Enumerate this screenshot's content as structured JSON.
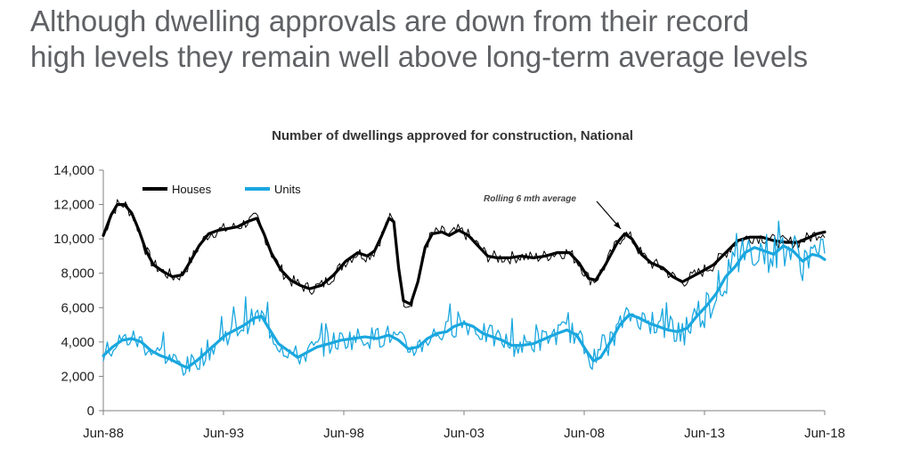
{
  "slide": {
    "title_line1": "Although dwelling approvals are down from their record",
    "title_line2": "high levels they remain well above long-term average levels"
  },
  "chart_data": {
    "type": "line",
    "title": "Number of dwellings approved for construction, National",
    "ylim": [
      0,
      14000
    ],
    "y_ticks": [
      "0",
      "2,000",
      "4,000",
      "6,000",
      "8,000",
      "10,000",
      "12,000",
      "14,000"
    ],
    "x_ticks": [
      "Jun-88",
      "Jun-93",
      "Jun-98",
      "Jun-03",
      "Jun-08",
      "Jun-13",
      "Jun-18"
    ],
    "x_start_year": 1988.42,
    "x_end_year": 2018.42,
    "annotation": "Rolling 6 mth average",
    "colors": {
      "houses": "#000000",
      "units": "#1aa7df"
    },
    "series": [
      {
        "name": "Houses",
        "points": [
          [
            1988.42,
            10200
          ],
          [
            1988.75,
            11400
          ],
          [
            1989.0,
            12000
          ],
          [
            1989.3,
            12000
          ],
          [
            1989.6,
            11500
          ],
          [
            1989.9,
            10500
          ],
          [
            1990.2,
            9300
          ],
          [
            1990.5,
            8500
          ],
          [
            1990.9,
            8100
          ],
          [
            1991.3,
            7800
          ],
          [
            1991.7,
            7900
          ],
          [
            1992.0,
            8600
          ],
          [
            1992.4,
            9600
          ],
          [
            1992.8,
            10300
          ],
          [
            1993.2,
            10500
          ],
          [
            1993.6,
            10600
          ],
          [
            1994.0,
            10700
          ],
          [
            1994.4,
            11000
          ],
          [
            1994.8,
            11200
          ],
          [
            1995.1,
            10300
          ],
          [
            1995.4,
            9200
          ],
          [
            1995.8,
            8200
          ],
          [
            1996.2,
            7600
          ],
          [
            1996.6,
            7300
          ],
          [
            1997.0,
            7100
          ],
          [
            1997.5,
            7300
          ],
          [
            1998.0,
            7900
          ],
          [
            1998.5,
            8700
          ],
          [
            1999.0,
            9200
          ],
          [
            1999.4,
            9000
          ],
          [
            1999.7,
            9300
          ],
          [
            2000.0,
            10200
          ],
          [
            2000.3,
            11200
          ],
          [
            2000.5,
            11000
          ],
          [
            2000.7,
            8300
          ],
          [
            2000.9,
            6400
          ],
          [
            2001.2,
            6200
          ],
          [
            2001.5,
            7500
          ],
          [
            2001.8,
            9500
          ],
          [
            2002.1,
            10300
          ],
          [
            2002.5,
            10400
          ],
          [
            2002.8,
            10200
          ],
          [
            2003.2,
            10500
          ],
          [
            2003.6,
            10200
          ],
          [
            2004.0,
            9600
          ],
          [
            2004.4,
            9000
          ],
          [
            2004.8,
            8900
          ],
          [
            2005.3,
            8900
          ],
          [
            2005.8,
            9000
          ],
          [
            2006.3,
            8900
          ],
          [
            2006.8,
            9000
          ],
          [
            2007.3,
            9200
          ],
          [
            2007.8,
            9200
          ],
          [
            2008.2,
            8600
          ],
          [
            2008.6,
            7700
          ],
          [
            2008.9,
            7600
          ],
          [
            2009.3,
            8500
          ],
          [
            2009.8,
            9800
          ],
          [
            2010.1,
            10300
          ],
          [
            2010.4,
            10000
          ],
          [
            2010.8,
            9100
          ],
          [
            2011.2,
            8600
          ],
          [
            2011.7,
            8300
          ],
          [
            2012.1,
            7800
          ],
          [
            2012.5,
            7500
          ],
          [
            2012.9,
            7800
          ],
          [
            2013.3,
            8100
          ],
          [
            2013.8,
            8500
          ],
          [
            2014.3,
            9200
          ],
          [
            2014.8,
            9900
          ],
          [
            2015.3,
            10100
          ],
          [
            2015.8,
            10100
          ],
          [
            2016.3,
            9900
          ],
          [
            2016.8,
            9800
          ],
          [
            2017.3,
            9800
          ],
          [
            2017.8,
            10100
          ],
          [
            2018.1,
            10300
          ],
          [
            2018.42,
            10400
          ]
        ]
      },
      {
        "name": "Units",
        "points": [
          [
            1988.42,
            3200
          ],
          [
            1988.8,
            3700
          ],
          [
            1989.2,
            4100
          ],
          [
            1989.6,
            4200
          ],
          [
            1990.0,
            4000
          ],
          [
            1990.4,
            3500
          ],
          [
            1990.8,
            3200
          ],
          [
            1991.2,
            3000
          ],
          [
            1991.6,
            2700
          ],
          [
            1991.9,
            2500
          ],
          [
            1992.3,
            2900
          ],
          [
            1992.7,
            3400
          ],
          [
            1993.1,
            3900
          ],
          [
            1993.5,
            4400
          ],
          [
            1993.9,
            4700
          ],
          [
            1994.3,
            5000
          ],
          [
            1994.7,
            5400
          ],
          [
            1995.0,
            5500
          ],
          [
            1995.3,
            4800
          ],
          [
            1995.7,
            3900
          ],
          [
            1996.1,
            3500
          ],
          [
            1996.5,
            3100
          ],
          [
            1996.9,
            3400
          ],
          [
            1997.3,
            3700
          ],
          [
            1997.8,
            3900
          ],
          [
            1998.3,
            4100
          ],
          [
            1998.8,
            4200
          ],
          [
            1999.3,
            4300
          ],
          [
            1999.8,
            4200
          ],
          [
            2000.3,
            4400
          ],
          [
            2000.7,
            4100
          ],
          [
            2001.1,
            3600
          ],
          [
            2001.5,
            3700
          ],
          [
            2001.9,
            4200
          ],
          [
            2002.3,
            4500
          ],
          [
            2002.7,
            4600
          ],
          [
            2003.0,
            4900
          ],
          [
            2003.4,
            5100
          ],
          [
            2003.8,
            4900
          ],
          [
            2004.2,
            4500
          ],
          [
            2004.6,
            4300
          ],
          [
            2005.0,
            4100
          ],
          [
            2005.4,
            3800
          ],
          [
            2005.8,
            3800
          ],
          [
            2006.3,
            3900
          ],
          [
            2006.8,
            4200
          ],
          [
            2007.3,
            4500
          ],
          [
            2007.7,
            4700
          ],
          [
            2008.1,
            4400
          ],
          [
            2008.5,
            3500
          ],
          [
            2008.8,
            2900
          ],
          [
            2009.1,
            3100
          ],
          [
            2009.5,
            4000
          ],
          [
            2009.9,
            5000
          ],
          [
            2010.3,
            5600
          ],
          [
            2010.7,
            5400
          ],
          [
            2011.1,
            5100
          ],
          [
            2011.5,
            4900
          ],
          [
            2011.9,
            4700
          ],
          [
            2012.3,
            4600
          ],
          [
            2012.7,
            4800
          ],
          [
            2013.1,
            5500
          ],
          [
            2013.5,
            6100
          ],
          [
            2013.9,
            6800
          ],
          [
            2014.3,
            7800
          ],
          [
            2014.7,
            8400
          ],
          [
            2015.1,
            9200
          ],
          [
            2015.5,
            9500
          ],
          [
            2015.9,
            9300
          ],
          [
            2016.3,
            9100
          ],
          [
            2016.7,
            9600
          ],
          [
            2017.1,
            9300
          ],
          [
            2017.5,
            8700
          ],
          [
            2017.9,
            9100
          ],
          [
            2018.2,
            9000
          ],
          [
            2018.42,
            8800
          ]
        ]
      }
    ]
  }
}
